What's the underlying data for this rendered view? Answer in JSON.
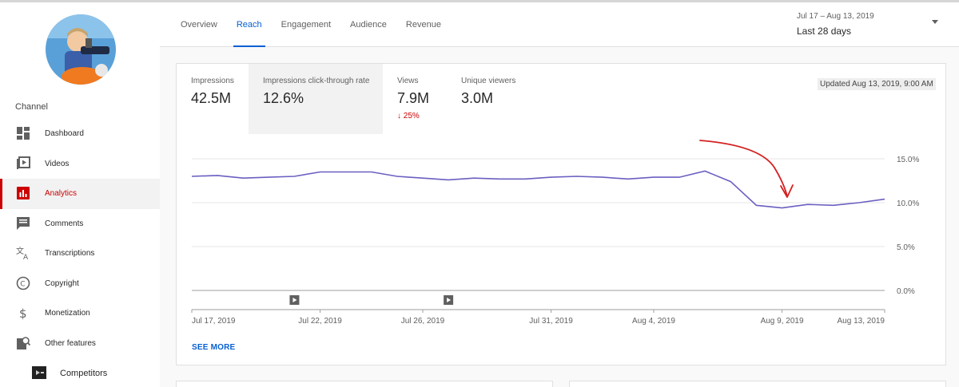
{
  "sidebar": {
    "channel_label": "Channel",
    "items": [
      {
        "label": "Dashboard",
        "icon": "dashboard-icon"
      },
      {
        "label": "Videos",
        "icon": "videos-icon"
      },
      {
        "label": "Analytics",
        "icon": "analytics-icon",
        "active": true
      },
      {
        "label": "Comments",
        "icon": "comments-icon"
      },
      {
        "label": "Transcriptions",
        "icon": "transcriptions-icon"
      },
      {
        "label": "Copyright",
        "icon": "copyright-icon"
      },
      {
        "label": "Monetization",
        "icon": "monetization-icon"
      },
      {
        "label": "Other features",
        "icon": "other-features-icon"
      },
      {
        "label": "Competitors",
        "icon": "competitors-icon"
      }
    ]
  },
  "header": {
    "tabs": [
      {
        "label": "Overview"
      },
      {
        "label": "Reach",
        "active": true
      },
      {
        "label": "Engagement"
      },
      {
        "label": "Audience"
      },
      {
        "label": "Revenue"
      }
    ],
    "date_range_dates": "Jul 17 – Aug 13, 2019",
    "date_range_label": "Last 28 days"
  },
  "metrics": [
    {
      "label": "Impressions",
      "value": "42.5M"
    },
    {
      "label": "Impressions click-through rate",
      "value": "12.6%",
      "selected": true
    },
    {
      "label": "Views",
      "value": "7.9M",
      "delta": "25%",
      "delta_direction": "down"
    },
    {
      "label": "Unique viewers",
      "value": "3.0M"
    }
  ],
  "updated": "Updated Aug 13, 2019, 9:00 AM",
  "see_more": "SEE MORE",
  "colors": {
    "accent_blue": "#065fd4",
    "active_red": "#cc0000",
    "line": "#6a5fc1",
    "annotation": "#d42020"
  },
  "chart_data": {
    "type": "line",
    "series": [
      {
        "values": [
          13.0,
          13.1,
          12.8,
          12.9,
          13.0,
          13.5,
          13.5,
          13.5,
          13.0,
          12.8,
          12.6,
          12.8,
          12.7,
          12.7,
          12.9,
          13.0,
          12.9,
          12.7,
          12.9,
          12.9,
          13.6,
          12.4,
          9.7,
          9.4,
          9.8,
          9.7,
          10.0,
          10.4
        ]
      }
    ],
    "x_tick_labels": [
      "Jul 17, 2019",
      "Jul 22, 2019",
      "Jul 26, 2019",
      "Jul 31, 2019",
      "Aug 4, 2019",
      "Aug 9, 2019",
      "Aug 13, 2019"
    ],
    "x_tick_indices": [
      0,
      5,
      9,
      14,
      18,
      23,
      27
    ],
    "y_ticks": [
      0,
      5,
      10,
      15
    ],
    "y_tick_labels": [
      "0.0%",
      "5.0%",
      "10.0%",
      "15.0%"
    ],
    "ylim": [
      0,
      15
    ],
    "video_markers": [
      4,
      10
    ],
    "annotation": "red-arrow"
  }
}
